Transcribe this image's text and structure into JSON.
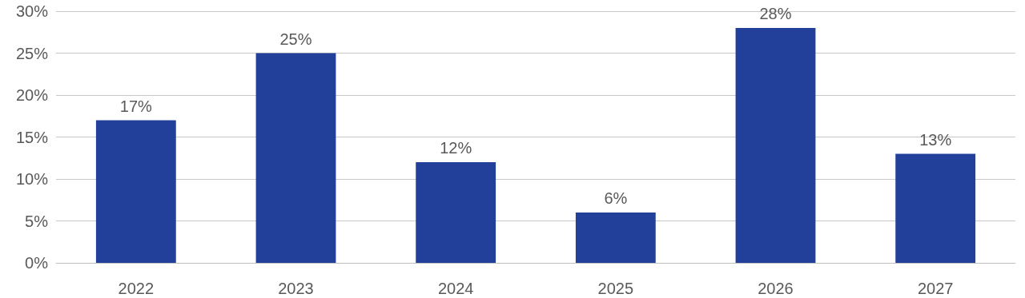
{
  "chart_data": {
    "type": "bar",
    "categories": [
      "2022",
      "2023",
      "2024",
      "2025",
      "2026",
      "2027"
    ],
    "values": [
      17,
      25,
      12,
      6,
      28,
      13
    ],
    "color": "#22409a",
    "value_labels": [
      "17%",
      "25%",
      "12%",
      "6%",
      "28%",
      "13%"
    ],
    "ylim": [
      0,
      30
    ],
    "yticks": [
      {
        "value": 0,
        "label": "0%"
      },
      {
        "value": 5,
        "label": "5%"
      },
      {
        "value": 10,
        "label": "10%"
      },
      {
        "value": 15,
        "label": "15%"
      },
      {
        "value": 20,
        "label": "20%"
      },
      {
        "value": 25,
        "label": "25%"
      },
      {
        "value": 30,
        "label": "30%"
      }
    ],
    "grid": "y"
  }
}
